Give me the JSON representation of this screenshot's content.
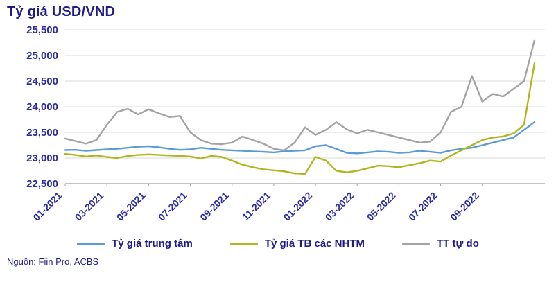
{
  "title": "Tỷ giá USD/VND",
  "source": "Nguồn: Fiin Pro, ACBS",
  "colors": {
    "title": "#1f1c86",
    "axis_label": "#2b2aa0",
    "grid": "#d9d9d9",
    "axis_line": "#a0a0a0"
  },
  "chart_data": {
    "type": "line",
    "title": "Tỷ giá USD/VND",
    "ylabel": "",
    "xlabel": "",
    "ylim": [
      22500,
      25500
    ],
    "ytick_step": 500,
    "grid": "horizontal",
    "legend_position": "bottom",
    "x_domain_months": [
      0,
      23
    ],
    "x_step": 0.5,
    "x_tick_labels": [
      "01-2021",
      "03-2021",
      "05-2021",
      "07-2021",
      "09-2021",
      "11-2021",
      "01-2022",
      "03-2022",
      "05-2022",
      "07-2022",
      "09-2022"
    ],
    "x_tick_positions": [
      0,
      2,
      4,
      6,
      8,
      10,
      12,
      14,
      16,
      18,
      20
    ],
    "series": [
      {
        "name": "Tỷ giá trung tâm",
        "color": "#5b9bd5",
        "values": [
          23155,
          23160,
          23140,
          23155,
          23170,
          23180,
          23200,
          23220,
          23230,
          23210,
          23180,
          23160,
          23170,
          23200,
          23180,
          23160,
          23150,
          23140,
          23130,
          23120,
          23110,
          23130,
          23140,
          23150,
          23230,
          23250,
          23180,
          23100,
          23090,
          23110,
          23130,
          23120,
          23100,
          23110,
          23140,
          23120,
          23100,
          23150,
          23180,
          23200,
          23250,
          23300,
          23350,
          23400,
          23550,
          23700
        ]
      },
      {
        "name": "Tỷ giá TB các NHTM",
        "color": "#aeb81e",
        "values": [
          23080,
          23060,
          23030,
          23050,
          23020,
          23000,
          23040,
          23060,
          23070,
          23060,
          23050,
          23040,
          23030,
          22990,
          23040,
          23020,
          22950,
          22870,
          22820,
          22780,
          22760,
          22740,
          22700,
          22690,
          23020,
          22950,
          22750,
          22720,
          22750,
          22800,
          22850,
          22840,
          22820,
          22860,
          22900,
          22950,
          22930,
          23050,
          23150,
          23250,
          23350,
          23400,
          23420,
          23480,
          23650,
          24850
        ]
      },
      {
        "name": "TT tự do",
        "color": "#a3a3a3",
        "values": [
          23380,
          23330,
          23280,
          23350,
          23650,
          23900,
          23960,
          23850,
          23950,
          23870,
          23800,
          23820,
          23500,
          23350,
          23280,
          23270,
          23300,
          23420,
          23350,
          23280,
          23180,
          23150,
          23300,
          23600,
          23450,
          23550,
          23700,
          23560,
          23480,
          23550,
          23500,
          23450,
          23400,
          23350,
          23300,
          23320,
          23500,
          23900,
          24000,
          24600,
          24100,
          24250,
          24200,
          24350,
          24500,
          25300
        ]
      }
    ]
  }
}
